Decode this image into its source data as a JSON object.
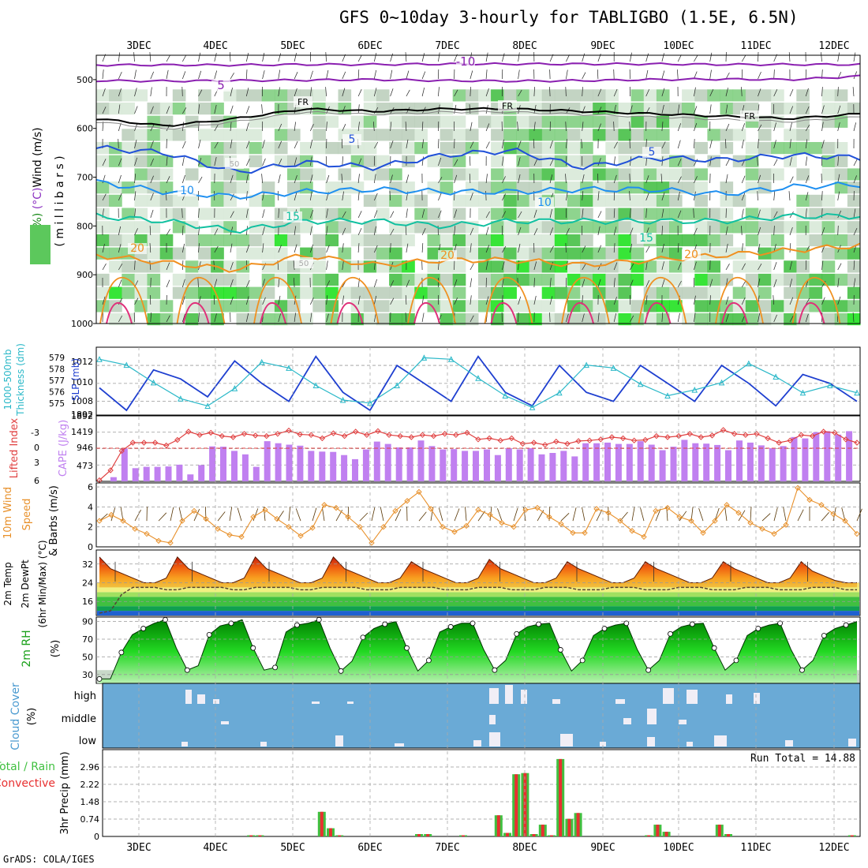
{
  "title": "GFS 0~10day 3-hourly for TABLIGBO (1.5E, 6.5N)",
  "footer": "GrADS: COLA/IGES",
  "date_labels": [
    "3DEC",
    "4DEC",
    "5DEC",
    "6DEC",
    "7DEC",
    "8DEC",
    "9DEC",
    "10DEC",
    "11DEC",
    "12DEC"
  ],
  "colors": {
    "temp_minus10": "#8a1fb0",
    "temp_5": "#2050d8",
    "temp_10": "#1e8ff0",
    "temp_15": "#10c0a0",
    "temp_20": "#f09020",
    "temp_25": "#e0307a",
    "slp": "#1e3fd0",
    "thickness": "#2ab8c8",
    "lifted": "#e04040",
    "cape": "#c080f0",
    "wind": "#e8902a",
    "rh": "#00c000",
    "cloud_bg": "#6aaad6",
    "cloud": "#f0eef6",
    "precip_total": "#40c040",
    "precip_conv": "#e83030"
  },
  "chart_data": [
    {
      "type": "heatmap",
      "panel": "cross-section",
      "ylabel_parts": [
        "RH (%)",
        "Temperature (°C)",
        "Wind (m/s)"
      ],
      "ylabel2": "( m i l l i b a r s )",
      "y_ticks": [
        "500",
        "600",
        "700",
        "800",
        "900",
        "1000"
      ],
      "ylim": [
        1000,
        450
      ],
      "temperature_contours": [
        {
          "label": "-10",
          "level": -10,
          "p": [
            470,
            470,
            470,
            469,
            469,
            468,
            468,
            468,
            468,
            469,
            469,
            469
          ]
        },
        {
          "label": "-5",
          "level": -5,
          "p": [
            502,
            503,
            502,
            501,
            500,
            502,
            503,
            502,
            500,
            499,
            500,
            493
          ]
        },
        {
          "label": "FR",
          "level": 0,
          "p": [
            580,
            595,
            580,
            560,
            565,
            560,
            560,
            565,
            570,
            575,
            580,
            570
          ]
        },
        {
          "label": "5",
          "level": 5,
          "p": [
            640,
            650,
            690,
            670,
            680,
            655,
            645,
            680,
            660,
            665,
            655,
            660
          ]
        },
        {
          "label": "10",
          "level": 10,
          "p": [
            710,
            730,
            740,
            730,
            725,
            730,
            730,
            725,
            725,
            735,
            720,
            715
          ]
        },
        {
          "label": "15",
          "level": 15,
          "p": [
            780,
            790,
            810,
            790,
            790,
            800,
            790,
            790,
            790,
            790,
            780,
            780
          ]
        },
        {
          "label": "20",
          "level": 20,
          "p": [
            860,
            875,
            890,
            860,
            880,
            870,
            870,
            880,
            870,
            860,
            850,
            840
          ]
        }
      ],
      "contour_labels": [
        "-10",
        "5",
        "FR",
        "FR",
        "FR",
        "5",
        "5",
        "10",
        "10",
        "15",
        "15",
        "20",
        "20",
        "20",
        "50",
        "50"
      ]
    },
    {
      "type": "line",
      "panel": "slp-thickness",
      "ylabel_left": [
        "1000-500mb",
        "Thickness (dm)"
      ],
      "ylabel_right": "SLP (mb)",
      "thickness_ticks": [
        "579",
        "578",
        "577",
        "576",
        "575"
      ],
      "slp_ticks": [
        "1012",
        "1010",
        "1008",
        "1892"
      ],
      "series": [
        {
          "values": [
            1009.5,
            1007,
            1011.5,
            1010.5,
            1008.5,
            1012.5,
            1010,
            1008,
            1013,
            1009,
            1007,
            1012,
            1010,
            1008,
            1013,
            1009,
            1007.5,
            1012,
            1009,
            1008,
            1012,
            1010,
            1008,
            1012,
            1010,
            1007.5,
            1011,
            1010,
            1008
          ]
        },
        {
          "values": [
            578.8,
            578.4,
            577.2,
            576.1,
            575.6,
            576.8,
            578.6,
            578.2,
            577,
            576,
            575.8,
            577,
            578.9,
            578.8,
            577.5,
            576.3,
            575.5,
            576.5,
            578.4,
            578.2,
            577.1,
            576.3,
            576.7,
            577.2,
            578.5,
            577.6,
            576.5,
            577,
            576.5
          ]
        }
      ]
    },
    {
      "type": "bar",
      "panel": "lifted-cape",
      "ylabel_left": "Lifted Index",
      "ylabel_right": "CAPE (J/kg)",
      "li_ticks": [
        "-3",
        "0",
        "3",
        "6"
      ],
      "cape_ticks": [
        "1892",
        "1419",
        "946",
        "473"
      ],
      "cape_values": [
        0,
        120,
        950,
        380,
        420,
        420,
        430,
        480,
        200,
        470,
        1010,
        1000,
        880,
        780,
        420,
        1160,
        1100,
        1060,
        1030,
        880,
        860,
        850,
        760,
        640,
        920,
        1150,
        1080,
        980,
        980,
        1180,
        1020,
        920,
        930,
        880,
        880,
        920,
        760,
        950,
        920,
        960,
        780,
        820,
        880,
        720,
        1100,
        1100,
        1120,
        1080,
        1080,
        1160,
        1060,
        900,
        1000,
        1200,
        1100,
        1090,
        1050,
        900,
        1180,
        1120,
        1040,
        960,
        1020,
        1280,
        1240,
        1420,
        1450,
        1350,
        1450
      ],
      "series": [
        {
          "values": [
            5.8,
            4,
            0.5,
            -1,
            -1,
            -1,
            -0.5,
            -1.5,
            -3,
            -2.4,
            -2.8,
            -2.2,
            -2,
            -2.6,
            -2.3,
            -2.2,
            -2.6,
            -3.2,
            -2.5,
            -2.4,
            -1.8,
            -2.7,
            -2.2,
            -3,
            -2.4,
            -3.1,
            -2.4,
            -2.2,
            -2,
            -2.4,
            -2.2,
            -2.6,
            -2.4,
            -2.8,
            -1.6,
            -1.8,
            -1.4,
            -1.8,
            -0.8,
            -1,
            -0.6,
            -1.2,
            -0.8,
            -1.3,
            -1.4,
            -1.6,
            -2,
            -1.8,
            -1.4,
            -1.5,
            -2.2,
            -2,
            -2.2,
            -2.6,
            -2,
            -2.3,
            -3.3,
            -2.6,
            -2.4,
            -2.6,
            -1.8,
            -1,
            -1.4,
            -2.4,
            -2.2,
            -3,
            -2.8,
            -1.6,
            -1
          ]
        }
      ]
    },
    {
      "type": "line",
      "panel": "wind",
      "ylabel_left": "10m Wind",
      "ylabel_left2": "Speed",
      "ylabel_right": "& Barbs (m/s)",
      "y_ticks": [
        "6",
        "4",
        "2",
        "0"
      ],
      "ylim": [
        0,
        6
      ],
      "series": [
        {
          "values": [
            2.6,
            3.2,
            2.6,
            1.8,
            1.3,
            0.6,
            0.4,
            2.6,
            3.6,
            2.8,
            1.8,
            1.2,
            1,
            3,
            3.7,
            2.8,
            2,
            1.1,
            1.9,
            4.2,
            3.9,
            3,
            2,
            0.4,
            2,
            3.6,
            4.6,
            5.5,
            3.8,
            2,
            1.5,
            2.1,
            3.7,
            3.2,
            2.4,
            2,
            3.7,
            3.9,
            3,
            2.3,
            1.4,
            1.4,
            3.8,
            3.4,
            2.6,
            1.6,
            1,
            3.6,
            3.9,
            3,
            2.6,
            1.4,
            2.6,
            4.2,
            3.4,
            2.4,
            1.8,
            1.3,
            2.2,
            5.9,
            4.7,
            4.2,
            3.3,
            2.6,
            1.3
          ]
        }
      ]
    },
    {
      "type": "area",
      "panel": "temperature",
      "ylabel": [
        "2m Temp",
        "2m DewPt",
        "(6hr Min/Max) (°C)"
      ],
      "y_ticks": [
        "32",
        "24",
        "16"
      ],
      "ylim": [
        10,
        38
      ],
      "series": [
        {
          "values": [
            35,
            30,
            28,
            26,
            24,
            24,
            26,
            35,
            30,
            28,
            26,
            24,
            24,
            26,
            35,
            30,
            28,
            26,
            24,
            24,
            26,
            35,
            30,
            28,
            26,
            24,
            24,
            26,
            33,
            30,
            28,
            26,
            24,
            24,
            26,
            34,
            30,
            28,
            26,
            24,
            24,
            26,
            33,
            30,
            28,
            26,
            24,
            24,
            26,
            33,
            30,
            28,
            26,
            24,
            24,
            26,
            33,
            30,
            28,
            26,
            24,
            24,
            26,
            33,
            29,
            27,
            25,
            24,
            24
          ]
        },
        {
          "values": [
            11,
            12,
            19,
            22,
            22,
            22,
            21,
            21,
            22,
            22,
            22,
            22,
            21,
            21,
            22,
            22,
            22,
            22,
            21,
            21,
            22,
            22,
            22,
            22,
            21,
            21,
            21,
            22,
            22,
            22,
            22,
            21,
            21,
            21,
            22,
            22,
            22,
            21,
            21,
            21,
            22,
            22,
            22,
            21,
            21,
            21,
            22,
            22,
            22,
            21,
            21,
            21,
            22,
            22,
            22,
            21,
            21,
            21,
            22,
            22,
            22,
            21,
            21,
            21,
            22,
            22,
            22,
            21,
            21
          ]
        }
      ]
    },
    {
      "type": "area",
      "panel": "rh",
      "ylabel": [
        "2m RH",
        "(%)"
      ],
      "y_ticks": [
        "90",
        "70",
        "50",
        "30"
      ],
      "ylim": [
        20,
        95
      ],
      "series": [
        {
          "values": [
            25,
            25,
            55,
            75,
            82,
            88,
            92,
            60,
            35,
            40,
            75,
            85,
            88,
            92,
            60,
            35,
            38,
            78,
            86,
            88,
            92,
            60,
            34,
            45,
            72,
            82,
            87,
            90,
            60,
            34,
            46,
            78,
            84,
            88,
            88,
            58,
            35,
            46,
            76,
            84,
            87,
            88,
            58,
            34,
            46,
            74,
            82,
            86,
            88,
            58,
            35,
            46,
            76,
            84,
            87,
            88,
            60,
            35,
            46,
            74,
            82,
            86,
            88,
            58,
            35,
            46,
            74,
            82,
            86,
            90
          ]
        }
      ]
    },
    {
      "type": "bar",
      "panel": "cloud",
      "ylabel": [
        "Cloud Cover",
        "(%)"
      ],
      "levels": [
        "high",
        "middle",
        "low"
      ]
    },
    {
      "type": "bar",
      "panel": "precip",
      "ylabel_left": [
        "Total / Rain",
        "Convective"
      ],
      "ylabel_right": "3hr Precip (mm)",
      "y_ticks": [
        "2.96",
        "2.22",
        "1.48",
        "0.74",
        "0"
      ],
      "ylim": [
        0,
        3.7
      ],
      "annotation": "Run Total = 14.88",
      "values": [
        0,
        0,
        0,
        0,
        0,
        0,
        0,
        0,
        0,
        0,
        0,
        0,
        0,
        0,
        0,
        0,
        0.05,
        0.05,
        0,
        0,
        0,
        0,
        0,
        0,
        1.05,
        0.35,
        0.05,
        0,
        0,
        0,
        0,
        0,
        0,
        0,
        0,
        0.1,
        0.1,
        0,
        0,
        0,
        0.05,
        0,
        0,
        0,
        0.9,
        0.15,
        2.65,
        2.7,
        0.1,
        0.5,
        0.05,
        3.3,
        0.75,
        1.0,
        0,
        0,
        0,
        0,
        0,
        0,
        0,
        0.05,
        0.5,
        0.2,
        0,
        0,
        0,
        0,
        0,
        0.5,
        0.1,
        0,
        0,
        0,
        0,
        0,
        0,
        0,
        0,
        0,
        0,
        0,
        0,
        0,
        0.05
      ]
    }
  ]
}
